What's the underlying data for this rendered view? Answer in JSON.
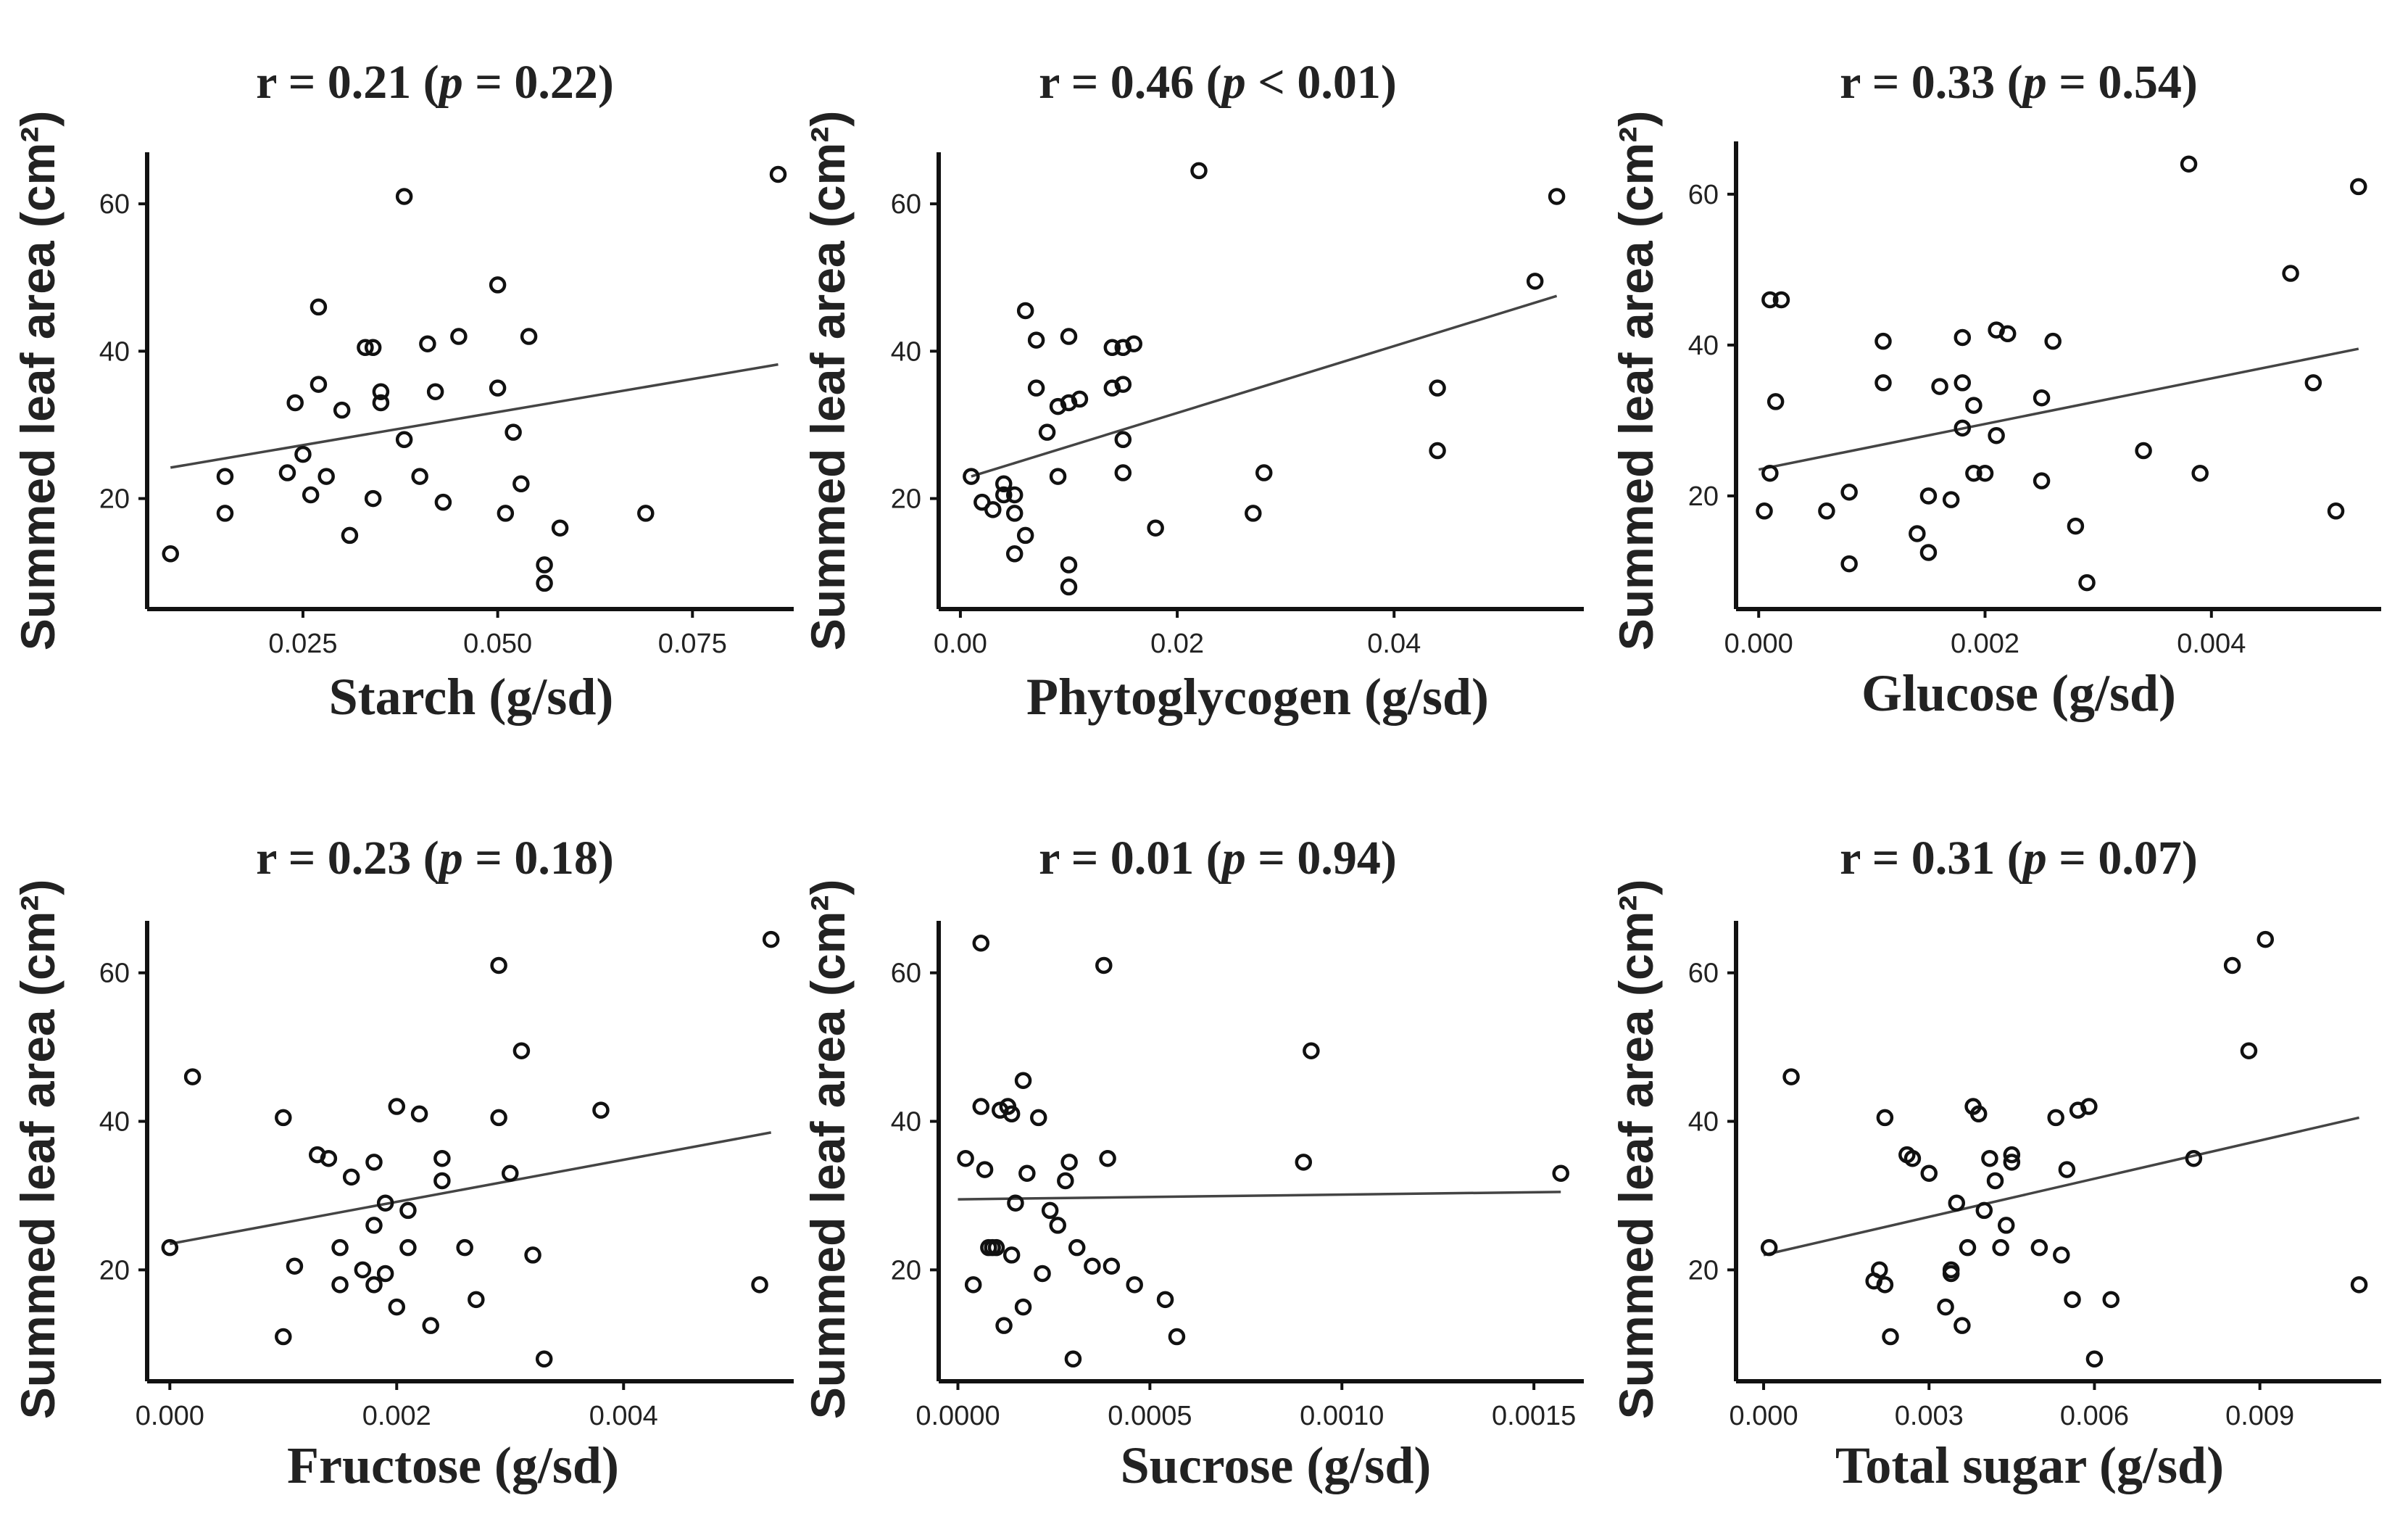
{
  "chart_data": [
    {
      "type": "scatter",
      "title": {
        "r": "r = 0.21 (",
        "p": "p",
        "rest": " = 0.22)"
      },
      "xlabel": "Starch (g/sd)",
      "ylabel": "Summed leaf area (cm²)",
      "xlim": [
        0.005,
        0.088
      ],
      "ylim": [
        5,
        67
      ],
      "xticks": [
        0.025,
        0.05,
        0.075
      ],
      "xtick_labels": [
        "0.025",
        "0.050",
        "0.075"
      ],
      "yticks": [
        20,
        40,
        60
      ],
      "ytick_labels": [
        "20",
        "40",
        "60"
      ],
      "fit": [
        [
          0.008,
          24.2
        ],
        [
          0.086,
          38.2
        ]
      ],
      "x": [
        0.008,
        0.015,
        0.015,
        0.023,
        0.024,
        0.025,
        0.026,
        0.027,
        0.027,
        0.028,
        0.03,
        0.031,
        0.033,
        0.034,
        0.034,
        0.035,
        0.035,
        0.038,
        0.038,
        0.04,
        0.041,
        0.042,
        0.043,
        0.045,
        0.05,
        0.05,
        0.051,
        0.052,
        0.053,
        0.054,
        0.056,
        0.056,
        0.058,
        0.069,
        0.086
      ],
      "y": [
        12.5,
        23.0,
        18.0,
        23.5,
        33.0,
        26.0,
        20.5,
        35.5,
        46.0,
        23.0,
        32.0,
        15.0,
        40.5,
        40.5,
        20.0,
        33.0,
        34.5,
        28.0,
        61.0,
        23.0,
        41.0,
        34.5,
        19.5,
        42.0,
        49.0,
        35.0,
        18.0,
        29.0,
        22.0,
        42.0,
        11.0,
        8.5,
        16.0,
        18.0,
        64.0
      ]
    },
    {
      "type": "scatter",
      "title": {
        "r": "r = 0.46 (",
        "p": "p",
        "rest": " < 0.01)"
      },
      "xlabel": "Phytoglycogen (g/sd)",
      "ylabel": "Summed leaf area (cm²)",
      "xlim": [
        -0.002,
        0.0575
      ],
      "ylim": [
        5,
        67
      ],
      "xticks": [
        0,
        0.02,
        0.04
      ],
      "xtick_labels": [
        "0.00",
        "0.02",
        "0.04"
      ],
      "yticks": [
        20,
        40,
        60
      ],
      "ytick_labels": [
        "20",
        "40",
        "60"
      ],
      "fit": [
        [
          0.001,
          23.0
        ],
        [
          0.055,
          47.5
        ]
      ],
      "x": [
        0.001,
        0.002,
        0.003,
        0.004,
        0.004,
        0.005,
        0.005,
        0.005,
        0.006,
        0.006,
        0.007,
        0.007,
        0.008,
        0.009,
        0.009,
        0.01,
        0.01,
        0.01,
        0.01,
        0.011,
        0.014,
        0.014,
        0.015,
        0.015,
        0.015,
        0.015,
        0.016,
        0.018,
        0.022,
        0.027,
        0.028,
        0.044,
        0.044,
        0.053,
        0.055
      ],
      "y": [
        23.0,
        19.5,
        18.5,
        22.0,
        20.5,
        18.0,
        12.5,
        20.5,
        45.5,
        15.0,
        41.5,
        35.0,
        29.0,
        23.0,
        32.5,
        42.0,
        11.0,
        8.0,
        33.0,
        33.5,
        40.5,
        35.0,
        40.5,
        23.5,
        28.0,
        35.5,
        41.0,
        16.0,
        64.5,
        18.0,
        23.5,
        35.0,
        26.5,
        49.5,
        61.0
      ]
    },
    {
      "type": "scatter",
      "title": {
        "r": "r = 0.33 (",
        "p": "p",
        "rest": " = 0.54)"
      },
      "xlabel": "Glucose (g/sd)",
      "ylabel": "Summed leaf area (cm²)",
      "xlim": [
        -0.0002,
        0.0055
      ],
      "ylim": [
        5,
        67
      ],
      "xticks": [
        0,
        0.002,
        0.004
      ],
      "xtick_labels": [
        "0.000",
        "0.002",
        "0.004"
      ],
      "yticks": [
        20,
        40,
        60
      ],
      "ytick_labels": [
        "20",
        "40",
        "60"
      ],
      "fit": [
        [
          0.0,
          23.5
        ],
        [
          0.0053,
          39.5
        ]
      ],
      "x": [
        5e-05,
        0.0001,
        0.00015,
        0.0001,
        0.0002,
        0.0006,
        0.0008,
        0.0008,
        0.0011,
        0.0011,
        0.0014,
        0.0015,
        0.0015,
        0.0016,
        0.0017,
        0.0018,
        0.0018,
        0.0018,
        0.0019,
        0.0019,
        0.002,
        0.0021,
        0.0021,
        0.0022,
        0.0025,
        0.0025,
        0.0026,
        0.0028,
        0.0029,
        0.0034,
        0.0038,
        0.0039,
        0.0047,
        0.0049,
        0.0051,
        0.0053
      ],
      "y": [
        18.0,
        23.0,
        32.5,
        46.0,
        46.0,
        18.0,
        11.0,
        20.5,
        40.5,
        35.0,
        15.0,
        20.0,
        12.5,
        34.5,
        19.5,
        29.0,
        35.0,
        41.0,
        23.0,
        32.0,
        23.0,
        42.0,
        28.0,
        41.5,
        33.0,
        22.0,
        40.5,
        16.0,
        8.5,
        26.0,
        64.0,
        23.0,
        49.5,
        35.0,
        18.0,
        61.0
      ]
    },
    {
      "type": "scatter",
      "title": {
        "r": "r = 0.23 (",
        "p": "p",
        "rest": " = 0.18)"
      },
      "xlabel": "Fructose (g/sd)",
      "ylabel": "Summed leaf area (cm²)",
      "xlim": [
        -0.0002,
        0.0055
      ],
      "ylim": [
        5,
        67
      ],
      "xticks": [
        0,
        0.002,
        0.004
      ],
      "xtick_labels": [
        "0.000",
        "0.002",
        "0.004"
      ],
      "yticks": [
        20,
        40,
        60
      ],
      "ytick_labels": [
        "20",
        "40",
        "60"
      ],
      "fit": [
        [
          0.0,
          23.5
        ],
        [
          0.0053,
          38.5
        ]
      ],
      "x": [
        0.0,
        0.0002,
        0.001,
        0.001,
        0.0011,
        0.0013,
        0.0014,
        0.0015,
        0.0015,
        0.0016,
        0.0017,
        0.0018,
        0.0018,
        0.0018,
        0.0019,
        0.0019,
        0.002,
        0.002,
        0.0021,
        0.0021,
        0.0022,
        0.0023,
        0.0024,
        0.0024,
        0.0026,
        0.0027,
        0.0029,
        0.0029,
        0.003,
        0.0031,
        0.0032,
        0.0033,
        0.0038,
        0.0052,
        0.0053
      ],
      "y": [
        23.0,
        46.0,
        40.5,
        11.0,
        20.5,
        35.5,
        35.0,
        23.0,
        18.0,
        32.5,
        20.0,
        34.5,
        26.0,
        18.0,
        19.5,
        29.0,
        42.0,
        15.0,
        23.0,
        28.0,
        41.0,
        12.5,
        32.0,
        35.0,
        23.0,
        16.0,
        40.5,
        61.0,
        33.0,
        49.5,
        22.0,
        8.0,
        41.5,
        18.0,
        64.5
      ]
    },
    {
      "type": "scatter",
      "title": {
        "r": "r = 0.01 (",
        "p": "p",
        "rest": " = 0.94)"
      },
      "xlabel": "Sucrose (g/sd)",
      "ylabel": "Summed leaf area (cm²)",
      "xlim": [
        -5e-05,
        0.00163
      ],
      "ylim": [
        5,
        67
      ],
      "xticks": [
        0,
        0.0005,
        0.001,
        0.0015
      ],
      "xtick_labels": [
        "0.0000",
        "0.0005",
        "0.0010",
        "0.0015"
      ],
      "yticks": [
        20,
        40,
        60
      ],
      "ytick_labels": [
        "20",
        "40",
        "60"
      ],
      "fit": [
        [
          0.0,
          29.5
        ],
        [
          0.00157,
          30.5
        ]
      ],
      "x": [
        2e-05,
        4e-05,
        6e-05,
        6e-05,
        7e-05,
        8e-05,
        9e-05,
        0.0001,
        0.00011,
        0.00012,
        0.00013,
        0.00014,
        0.00014,
        0.00015,
        0.00017,
        0.00017,
        0.00018,
        0.00021,
        0.00022,
        0.00024,
        0.00026,
        0.00028,
        0.00029,
        0.0003,
        0.00031,
        0.00035,
        0.00038,
        0.00039,
        0.0004,
        0.00046,
        0.00054,
        0.00057,
        0.0009,
        0.00092,
        0.00157
      ],
      "y": [
        35.0,
        18.0,
        64.0,
        42.0,
        33.5,
        23.0,
        23.0,
        23.0,
        41.5,
        12.5,
        42.0,
        41.0,
        22.0,
        29.0,
        45.5,
        15.0,
        33.0,
        40.5,
        19.5,
        28.0,
        26.0,
        32.0,
        34.5,
        8.0,
        23.0,
        20.5,
        61.0,
        35.0,
        20.5,
        18.0,
        16.0,
        11.0,
        34.5,
        49.5,
        33.0
      ]
    },
    {
      "type": "scatter",
      "title": {
        "r": "r = 0.31 (",
        "p": "p",
        "rest": " = 0.07)"
      },
      "xlabel": "Total sugar (g/sd)",
      "ylabel": "Summed leaf area (cm²)",
      "xlim": [
        -0.0005,
        0.0112
      ],
      "ylim": [
        5,
        67
      ],
      "xticks": [
        0,
        0.003,
        0.006,
        0.009
      ],
      "xtick_labels": [
        "0.000",
        "0.003",
        "0.006",
        "0.009"
      ],
      "yticks": [
        20,
        40,
        60
      ],
      "ytick_labels": [
        "20",
        "40",
        "60"
      ],
      "fit": [
        [
          0.0,
          22.0
        ],
        [
          0.0108,
          40.5
        ]
      ],
      "x": [
        0.0001,
        0.0005,
        0.002,
        0.0021,
        0.0022,
        0.0022,
        0.0023,
        0.0026,
        0.0027,
        0.003,
        0.0033,
        0.0034,
        0.0034,
        0.0035,
        0.0036,
        0.0037,
        0.0038,
        0.0039,
        0.004,
        0.0041,
        0.0042,
        0.0043,
        0.0044,
        0.0045,
        0.0045,
        0.005,
        0.0053,
        0.0054,
        0.0055,
        0.0056,
        0.0057,
        0.0059,
        0.006,
        0.0063,
        0.0078,
        0.0085,
        0.0088,
        0.0091,
        0.0108
      ],
      "y": [
        23.0,
        46.0,
        18.5,
        20.0,
        40.5,
        18.0,
        11.0,
        35.5,
        35.0,
        33.0,
        15.0,
        20.0,
        19.5,
        29.0,
        12.5,
        23.0,
        42.0,
        41.0,
        28.0,
        35.0,
        32.0,
        23.0,
        26.0,
        35.5,
        34.5,
        23.0,
        40.5,
        22.0,
        33.5,
        16.0,
        41.5,
        42.0,
        8.0,
        16.0,
        35.0,
        61.0,
        49.5,
        64.5,
        18.0
      ]
    }
  ]
}
